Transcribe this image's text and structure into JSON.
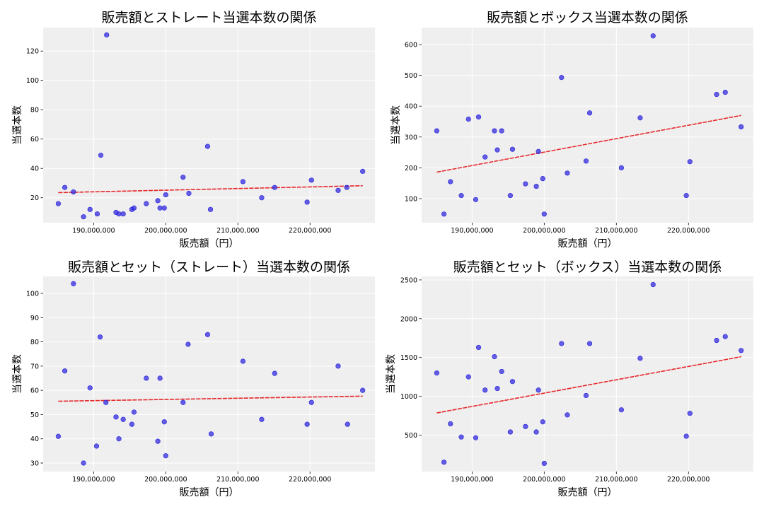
{
  "chart_data": [
    {
      "type": "scatter",
      "title": "販売額とストレート当選本数の関係",
      "xlabel": "販売額（円）",
      "ylabel": "当選本数",
      "xlim": [
        183000000,
        229000000
      ],
      "ylim": [
        3,
        136
      ],
      "xticks": [
        190000000,
        200000000,
        210000000,
        220000000
      ],
      "xtick_labels": [
        "190,000,000",
        "200,000,000",
        "210,000,000",
        "220,000,000"
      ],
      "yticks": [
        20,
        40,
        60,
        80,
        100,
        120
      ],
      "ytick_labels": [
        "20",
        "40",
        "60",
        "80",
        "100",
        "120"
      ],
      "grid": true,
      "point_color": "#2a22dd",
      "trend_color": "#e8262a",
      "points": [
        [
          185100000,
          16
        ],
        [
          186000000,
          27
        ],
        [
          187200000,
          24
        ],
        [
          188600000,
          7
        ],
        [
          189500000,
          12
        ],
        [
          190500000,
          9
        ],
        [
          191000000,
          49
        ],
        [
          191800000,
          131
        ],
        [
          193100000,
          10
        ],
        [
          193500000,
          9
        ],
        [
          194100000,
          9
        ],
        [
          195300000,
          12
        ],
        [
          195600000,
          13
        ],
        [
          197300000,
          16
        ],
        [
          198900000,
          18
        ],
        [
          199200000,
          13
        ],
        [
          199800000,
          13
        ],
        [
          200000000,
          22
        ],
        [
          202400000,
          34
        ],
        [
          203200000,
          23
        ],
        [
          205800000,
          55
        ],
        [
          206200000,
          12
        ],
        [
          210700000,
          31
        ],
        [
          213300000,
          20
        ],
        [
          215100000,
          27
        ],
        [
          219600000,
          17
        ],
        [
          220200000,
          32
        ],
        [
          223900000,
          25
        ],
        [
          225100000,
          27
        ],
        [
          227300000,
          38
        ]
      ],
      "trend": [
        [
          185100000,
          23.5
        ],
        [
          227300000,
          28.2
        ]
      ]
    },
    {
      "type": "scatter",
      "title": "販売額とボックス当選本数の関係",
      "xlabel": "販売額（円）",
      "ylabel": "当選本数",
      "xlim": [
        183000000,
        229000000
      ],
      "ylim": [
        22,
        655
      ],
      "xticks": [
        190000000,
        200000000,
        210000000,
        220000000
      ],
      "xtick_labels": [
        "190,000,000",
        "200,000,000",
        "210,000,000",
        "220,000,000"
      ],
      "yticks": [
        100,
        200,
        300,
        400,
        500,
        600
      ],
      "ytick_labels": [
        "100",
        "200",
        "300",
        "400",
        "500",
        "600"
      ],
      "grid": true,
      "point_color": "#2a22dd",
      "trend_color": "#e8262a",
      "points": [
        [
          185100000,
          320
        ],
        [
          186100000,
          50
        ],
        [
          187000000,
          155
        ],
        [
          188500000,
          110
        ],
        [
          189500000,
          358
        ],
        [
          190500000,
          97
        ],
        [
          190900000,
          365
        ],
        [
          191800000,
          235
        ],
        [
          193100000,
          320
        ],
        [
          193500000,
          258
        ],
        [
          194100000,
          320
        ],
        [
          195300000,
          110
        ],
        [
          195600000,
          260
        ],
        [
          197400000,
          148
        ],
        [
          198900000,
          140
        ],
        [
          199200000,
          253
        ],
        [
          199800000,
          165
        ],
        [
          200000000,
          50
        ],
        [
          202400000,
          493
        ],
        [
          203200000,
          183
        ],
        [
          205800000,
          222
        ],
        [
          206300000,
          378
        ],
        [
          210700000,
          200
        ],
        [
          213300000,
          362
        ],
        [
          215100000,
          628
        ],
        [
          219700000,
          110
        ],
        [
          220200000,
          220
        ],
        [
          223900000,
          438
        ],
        [
          225100000,
          445
        ],
        [
          227300000,
          333
        ]
      ],
      "trend": [
        [
          185100000,
          186
        ],
        [
          227300000,
          370
        ]
      ]
    },
    {
      "type": "scatter",
      "title": "販売額とセット（ストレート）当選本数の関係",
      "xlabel": "販売額（円）",
      "ylabel": "当選本数",
      "xlim": [
        183000000,
        229000000
      ],
      "ylim": [
        26.5,
        107
      ],
      "xticks": [
        190000000,
        200000000,
        210000000,
        220000000
      ],
      "xtick_labels": [
        "190,000,000",
        "200,000,000",
        "210,000,000",
        "220,000,000"
      ],
      "yticks": [
        30,
        40,
        50,
        60,
        70,
        80,
        90,
        100
      ],
      "ytick_labels": [
        "30",
        "40",
        "50",
        "60",
        "70",
        "80",
        "90",
        "100"
      ],
      "grid": true,
      "point_color": "#2a22dd",
      "trend_color": "#e8262a",
      "points": [
        [
          185100000,
          41
        ],
        [
          186000000,
          68
        ],
        [
          187200000,
          104
        ],
        [
          188600000,
          30
        ],
        [
          189500000,
          61
        ],
        [
          190400000,
          37
        ],
        [
          190900000,
          82
        ],
        [
          191700000,
          55
        ],
        [
          193100000,
          49
        ],
        [
          193500000,
          40
        ],
        [
          194100000,
          48
        ],
        [
          195300000,
          46
        ],
        [
          195600000,
          51
        ],
        [
          197300000,
          65
        ],
        [
          198900000,
          39
        ],
        [
          199200000,
          65
        ],
        [
          199800000,
          47
        ],
        [
          200000000,
          33
        ],
        [
          202400000,
          55
        ],
        [
          203100000,
          79
        ],
        [
          205800000,
          83
        ],
        [
          206300000,
          42
        ],
        [
          210700000,
          72
        ],
        [
          213300000,
          48
        ],
        [
          215100000,
          67
        ],
        [
          219600000,
          46
        ],
        [
          220200000,
          55
        ],
        [
          223900000,
          70
        ],
        [
          225200000,
          46
        ],
        [
          227300000,
          60
        ]
      ],
      "trend": [
        [
          185100000,
          55.5
        ],
        [
          227300000,
          57.6
        ]
      ]
    },
    {
      "type": "scatter",
      "title": "販売額とセット（ボックス）当選本数の関係",
      "xlabel": "販売額（円）",
      "ylabel": "当選本数",
      "xlim": [
        183000000,
        229000000
      ],
      "ylim": [
        30,
        2545
      ],
      "xticks": [
        190000000,
        200000000,
        210000000,
        220000000
      ],
      "xtick_labels": [
        "190,000,000",
        "200,000,000",
        "210,000,000",
        "220,000,000"
      ],
      "yticks": [
        500,
        1000,
        1500,
        2000,
        2500
      ],
      "ytick_labels": [
        "500",
        "1000",
        "1500",
        "2000",
        "2500"
      ],
      "grid": true,
      "point_color": "#2a22dd",
      "trend_color": "#e8262a",
      "points": [
        [
          185100000,
          1300
        ],
        [
          186100000,
          150
        ],
        [
          187000000,
          645
        ],
        [
          188500000,
          475
        ],
        [
          189500000,
          1250
        ],
        [
          190500000,
          465
        ],
        [
          190900000,
          1630
        ],
        [
          191800000,
          1080
        ],
        [
          193100000,
          1510
        ],
        [
          193500000,
          1100
        ],
        [
          194100000,
          1320
        ],
        [
          195300000,
          540
        ],
        [
          195600000,
          1190
        ],
        [
          197400000,
          610
        ],
        [
          198900000,
          540
        ],
        [
          199200000,
          1080
        ],
        [
          199800000,
          670
        ],
        [
          200000000,
          135
        ],
        [
          202400000,
          1680
        ],
        [
          203200000,
          760
        ],
        [
          205800000,
          1010
        ],
        [
          206300000,
          1680
        ],
        [
          210700000,
          825
        ],
        [
          213300000,
          1490
        ],
        [
          215100000,
          2440
        ],
        [
          219700000,
          485
        ],
        [
          220200000,
          780
        ],
        [
          223900000,
          1720
        ],
        [
          225100000,
          1770
        ],
        [
          227300000,
          1590
        ]
      ],
      "trend": [
        [
          185100000,
          785
        ],
        [
          227300000,
          1510
        ]
      ]
    }
  ]
}
